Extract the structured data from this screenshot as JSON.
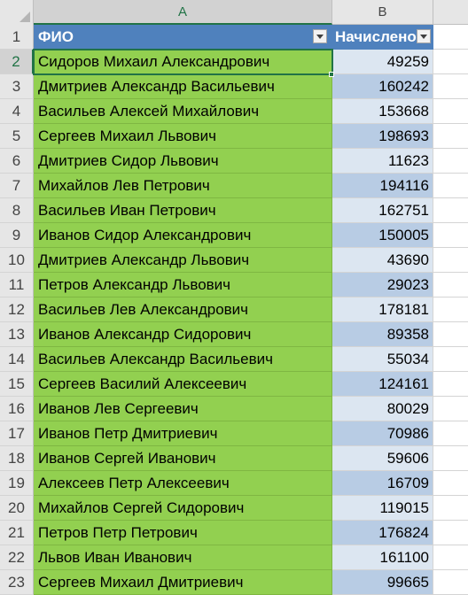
{
  "columns": [
    {
      "letter": "A"
    },
    {
      "letter": "B"
    }
  ],
  "header_row": {
    "row_number": "1",
    "fio": "ФИО",
    "accrued": "Начислено"
  },
  "rows": [
    {
      "n": "2",
      "name": "Сидоров Михаил Александрович",
      "value": "49259"
    },
    {
      "n": "3",
      "name": "Дмитриев Александр Васильевич",
      "value": "160242"
    },
    {
      "n": "4",
      "name": "Васильев Алексей Михайлович",
      "value": "153668"
    },
    {
      "n": "5",
      "name": "Сергеев Михаил Львович",
      "value": "198693"
    },
    {
      "n": "6",
      "name": "Дмитриев Сидор Львович",
      "value": "11623"
    },
    {
      "n": "7",
      "name": "Михайлов Лев Петрович",
      "value": "194116"
    },
    {
      "n": "8",
      "name": "Васильев Иван Петрович",
      "value": "162751"
    },
    {
      "n": "9",
      "name": "Иванов Сидор Александрович",
      "value": "150005"
    },
    {
      "n": "10",
      "name": "Дмитриев Александр Львович",
      "value": "43690"
    },
    {
      "n": "11",
      "name": "Петров Александр Львович",
      "value": "29023"
    },
    {
      "n": "12",
      "name": "Васильев Лев Александрович",
      "value": "178181"
    },
    {
      "n": "13",
      "name": "Иванов Александр Сидорович",
      "value": "89358"
    },
    {
      "n": "14",
      "name": "Васильев Александр Васильевич",
      "value": "55034"
    },
    {
      "n": "15",
      "name": "Сергеев Василий Алексеевич",
      "value": "124161"
    },
    {
      "n": "16",
      "name": "Иванов Лев Сергеевич",
      "value": "80029"
    },
    {
      "n": "17",
      "name": "Иванов Петр Дмитриевич",
      "value": "70986"
    },
    {
      "n": "18",
      "name": "Иванов Сергей Иванович",
      "value": "59606"
    },
    {
      "n": "19",
      "name": "Алексеев Петр Алексеевич",
      "value": "16709"
    },
    {
      "n": "20",
      "name": "Михайлов Сергей Сидорович",
      "value": "119015"
    },
    {
      "n": "21",
      "name": "Петров Петр Петрович",
      "value": "176824"
    },
    {
      "n": "22",
      "name": "Львов Иван Иванович",
      "value": "161100"
    },
    {
      "n": "23",
      "name": "Сергеев Михаил Дмитриевич",
      "value": "99665"
    }
  ],
  "selection": {
    "active_cell": "A2"
  },
  "colors": {
    "name_fill": "#92d050",
    "header_fill": "#4f81bd",
    "value_band_dark": "#b8cce4",
    "value_band_light": "#dce6f1",
    "selection_accent": "#217346"
  },
  "icons": {
    "filter": "filter-dropdown-icon",
    "select_all": "select-all-icon"
  }
}
